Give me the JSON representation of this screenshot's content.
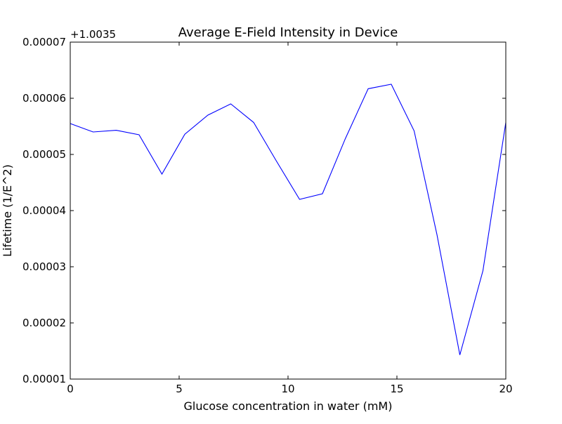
{
  "chart_data": {
    "type": "line",
    "title": "Average E-Field Intensity in Device",
    "xlabel": "Glucose concentration in water (mM)",
    "ylabel": "Lifetime (1/E^2)",
    "offset_text": "+1.0035",
    "xlim": [
      0,
      20
    ],
    "ylim": [
      1e-05,
      7e-05
    ],
    "x_ticks": [
      0,
      5,
      10,
      15,
      20
    ],
    "x_tick_labels": [
      "0",
      "5",
      "10",
      "15",
      "20"
    ],
    "y_ticks": [
      1e-05,
      2e-05,
      3e-05,
      4e-05,
      5e-05,
      6e-05,
      7e-05
    ],
    "y_tick_labels": [
      "0.00001",
      "0.00002",
      "0.00003",
      "0.00004",
      "0.00005",
      "0.00006",
      "0.00007"
    ],
    "grid": false,
    "series": [
      {
        "color": "#0000ff",
        "x": [
          0,
          1.05,
          2.11,
          3.16,
          4.21,
          5.26,
          6.32,
          7.37,
          8.42,
          9.47,
          10.53,
          11.58,
          12.63,
          13.68,
          14.74,
          15.79,
          16.84,
          17.89,
          18.95,
          20
        ],
        "y": [
          5.55e-05,
          5.4e-05,
          5.43e-05,
          5.35e-05,
          4.65e-05,
          5.36e-05,
          5.7e-05,
          5.9e-05,
          5.57e-05,
          4.88e-05,
          4.2e-05,
          4.3e-05,
          5.28e-05,
          6.17e-05,
          6.25e-05,
          5.42e-05,
          3.57e-05,
          1.43e-05,
          2.93e-05,
          5.57e-05
        ]
      }
    ]
  }
}
